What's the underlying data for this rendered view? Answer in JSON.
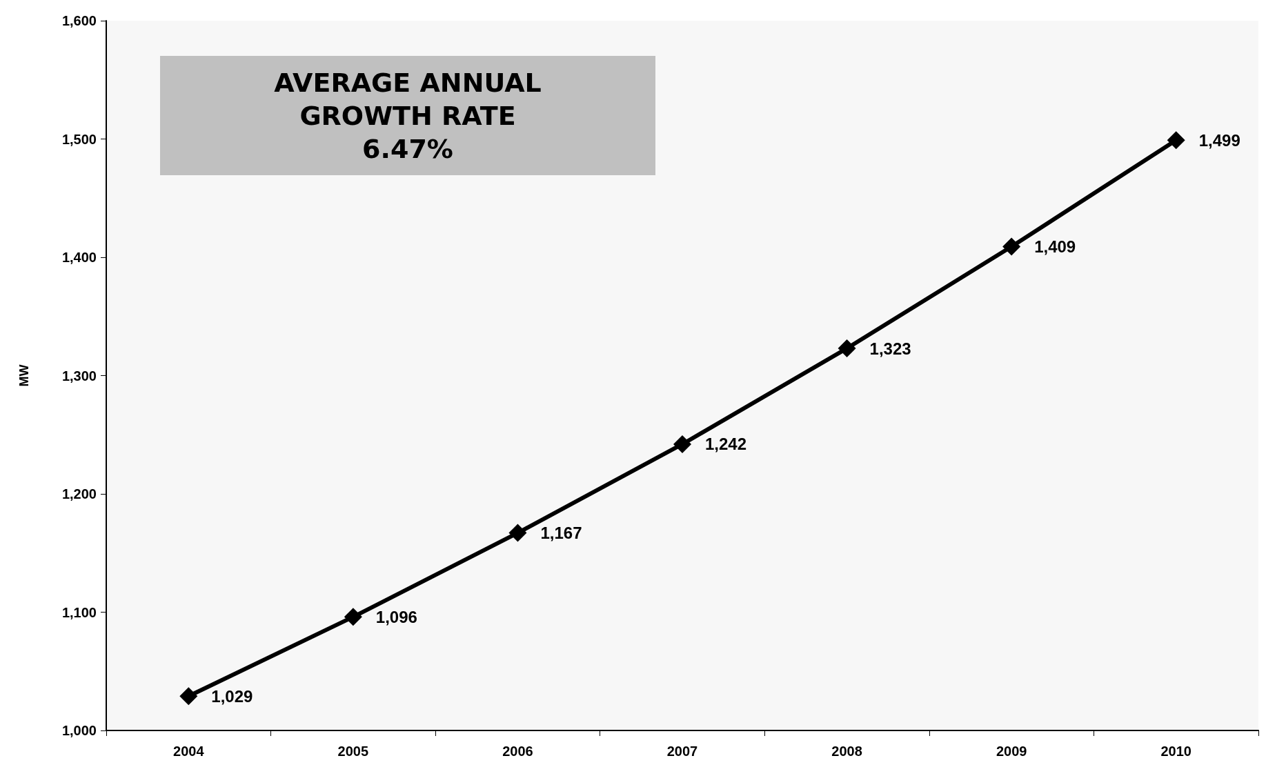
{
  "chart_data": {
    "type": "line",
    "ylabel": "MW",
    "categories": [
      "2004",
      "2005",
      "2006",
      "2007",
      "2008",
      "2009",
      "2010"
    ],
    "series": [
      {
        "color": "#000000",
        "values": [
          1029,
          1096,
          1167,
          1242,
          1323,
          1409,
          1499
        ],
        "value_labels": [
          "1,029",
          "1,096",
          "1,167",
          "1,242",
          "1,323",
          "1,409",
          "1,499"
        ]
      }
    ],
    "ylim": [
      1000,
      1600
    ],
    "yticks": [
      {
        "value": 1000,
        "label": "1,000"
      },
      {
        "value": 1100,
        "label": "1,100"
      },
      {
        "value": 1200,
        "label": "1,200"
      },
      {
        "value": 1300,
        "label": "1,300"
      },
      {
        "value": 1400,
        "label": "1,400"
      },
      {
        "value": 1500,
        "label": "1,500"
      },
      {
        "value": 1600,
        "label": "1,600"
      }
    ],
    "marker": "diamond",
    "line_style": "solid",
    "grid": false,
    "annotations": [
      "AVERAGE ANNUAL\nGROWTH RATE\n6.47%"
    ]
  }
}
